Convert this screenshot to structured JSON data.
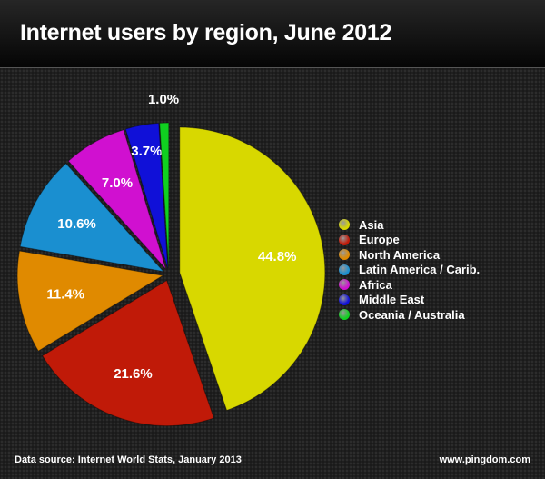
{
  "chart_data": {
    "type": "pie",
    "title": "Internet users by region, June 2012",
    "categories": [
      "Asia",
      "Europe",
      "North America",
      "Latin America / Carib.",
      "Africa",
      "Middle East",
      "Oceania / Australia"
    ],
    "values": [
      44.8,
      21.6,
      11.4,
      10.6,
      7.0,
      3.7,
      1.0
    ],
    "labels": [
      "44.8%",
      "21.6%",
      "11.4%",
      "10.6%",
      "7.0%",
      "3.7%",
      "1.0%"
    ],
    "colors": [
      "#d8d800",
      "#c01a08",
      "#e08a00",
      "#1a8fd0",
      "#d010d0",
      "#1010d8",
      "#10d020"
    ],
    "legend_position": "right",
    "source": "Data source: Internet World Stats, January 2013",
    "website": "www.pingdom.com"
  }
}
